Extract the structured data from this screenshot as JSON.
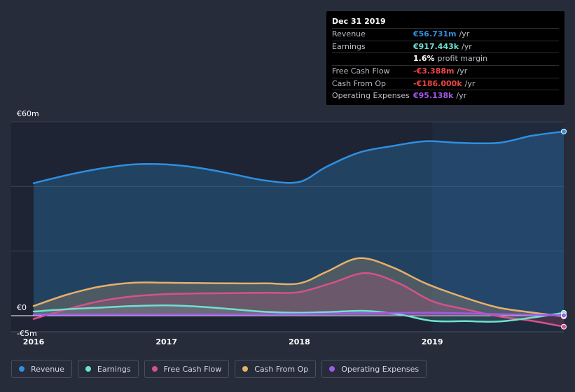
{
  "colors": {
    "background": "#262c3a",
    "revenue": "#2f8fe0",
    "earnings": "#6ee1cf",
    "fcf": "#d5528a",
    "cfo": "#e6b06a",
    "opex": "#a05ae8"
  },
  "tooltip": {
    "date": "Dec 31 2019",
    "rows": [
      {
        "label": "Revenue",
        "value": "€56.731m",
        "unit": "/yr",
        "color": "#2f8fe0"
      },
      {
        "label": "Earnings",
        "value": "€917.443k",
        "unit": "/yr",
        "color": "#6ee1cf"
      },
      {
        "label": "",
        "value": "1.6%",
        "unit": "profit margin",
        "color": "#ffffff"
      },
      {
        "label": "Free Cash Flow",
        "value": "-€3.388m",
        "unit": "/yr",
        "color": "#ef4444"
      },
      {
        "label": "Cash From Op",
        "value": "-€186.000k",
        "unit": "/yr",
        "color": "#ef4444"
      },
      {
        "label": "Operating Expenses",
        "value": "€95.138k",
        "unit": "/yr",
        "color": "#a05ae8"
      }
    ]
  },
  "legend": [
    {
      "label": "Revenue",
      "color": "#2f8fe0"
    },
    {
      "label": "Earnings",
      "color": "#6ee1cf"
    },
    {
      "label": "Free Cash Flow",
      "color": "#d5528a"
    },
    {
      "label": "Cash From Op",
      "color": "#e6b06a"
    },
    {
      "label": "Operating Expenses",
      "color": "#a05ae8"
    }
  ],
  "chart_data": {
    "type": "area",
    "title": "",
    "xlabel": "",
    "ylabel": "",
    "x_ticks": [
      {
        "label": "2016",
        "x": 2016.0
      },
      {
        "label": "2017",
        "x": 2017.0
      },
      {
        "label": "2018",
        "x": 2018.0
      },
      {
        "label": "2019",
        "x": 2019.0
      }
    ],
    "y_labels": [
      {
        "label": "€60m",
        "y": 60
      },
      {
        "label": "€0",
        "y": 0
      },
      {
        "label": "-€5m",
        "y": -5
      }
    ],
    "xlim": [
      2015.83,
      2019.99
    ],
    "ylim": [
      -5,
      60
    ],
    "highlight_from": 2019.0,
    "series": [
      {
        "name": "Revenue",
        "key": "revenue",
        "x": [
          2016.0,
          2016.25,
          2016.5,
          2016.75,
          2017.0,
          2017.25,
          2017.5,
          2017.75,
          2018.0,
          2018.2,
          2018.45,
          2018.7,
          2018.95,
          2019.2,
          2019.5,
          2019.75,
          2019.99
        ],
        "y": [
          41,
          43.5,
          45.5,
          46.8,
          46.8,
          45.7,
          43.8,
          41.8,
          41.4,
          46,
          50.5,
          52.5,
          54,
          53.5,
          53.5,
          55.7,
          57
        ]
      },
      {
        "name": "Earnings",
        "key": "earnings",
        "x": [
          2016.0,
          2016.25,
          2016.5,
          2016.75,
          2017.0,
          2017.25,
          2017.5,
          2017.75,
          2018.0,
          2018.25,
          2018.5,
          2018.75,
          2019.0,
          2019.25,
          2019.5,
          2019.75,
          2019.99
        ],
        "y": [
          1.3,
          2.0,
          2.5,
          3.0,
          3.2,
          2.8,
          2.0,
          1.2,
          0.9,
          1.2,
          1.5,
          0.4,
          -1.6,
          -1.7,
          -1.8,
          -0.6,
          0.9
        ]
      },
      {
        "name": "Free Cash Flow",
        "key": "fcf",
        "x": [
          2016.0,
          2016.25,
          2016.5,
          2016.75,
          2017.0,
          2017.25,
          2017.5,
          2017.75,
          2018.0,
          2018.25,
          2018.5,
          2018.75,
          2019.0,
          2019.25,
          2019.5,
          2019.75,
          2019.99
        ],
        "y": [
          -1.0,
          2.0,
          4.5,
          6.0,
          6.7,
          6.9,
          7.0,
          7.1,
          7.3,
          10.2,
          13.2,
          10.0,
          4.5,
          2.0,
          -0.2,
          -1.6,
          -3.4
        ]
      },
      {
        "name": "Cash From Op",
        "key": "cfo",
        "x": [
          2016.0,
          2016.25,
          2016.5,
          2016.75,
          2017.0,
          2017.25,
          2017.5,
          2017.75,
          2018.0,
          2018.2,
          2018.45,
          2018.7,
          2018.95,
          2019.25,
          2019.5,
          2019.75,
          2019.99
        ],
        "y": [
          3.0,
          6.5,
          9.0,
          10.2,
          10.2,
          10.1,
          10.0,
          10.0,
          10.0,
          13.5,
          17.8,
          15.0,
          10.0,
          5.5,
          2.5,
          1.0,
          -0.2
        ]
      },
      {
        "name": "Operating Expenses",
        "key": "opex",
        "x": [
          2016.0,
          2016.5,
          2017.0,
          2017.5,
          2018.0,
          2018.5,
          2019.0,
          2019.5,
          2019.99
        ],
        "y": [
          0.4,
          0.4,
          0.4,
          0.4,
          0.5,
          0.8,
          0.9,
          0.5,
          0.1
        ]
      }
    ]
  }
}
